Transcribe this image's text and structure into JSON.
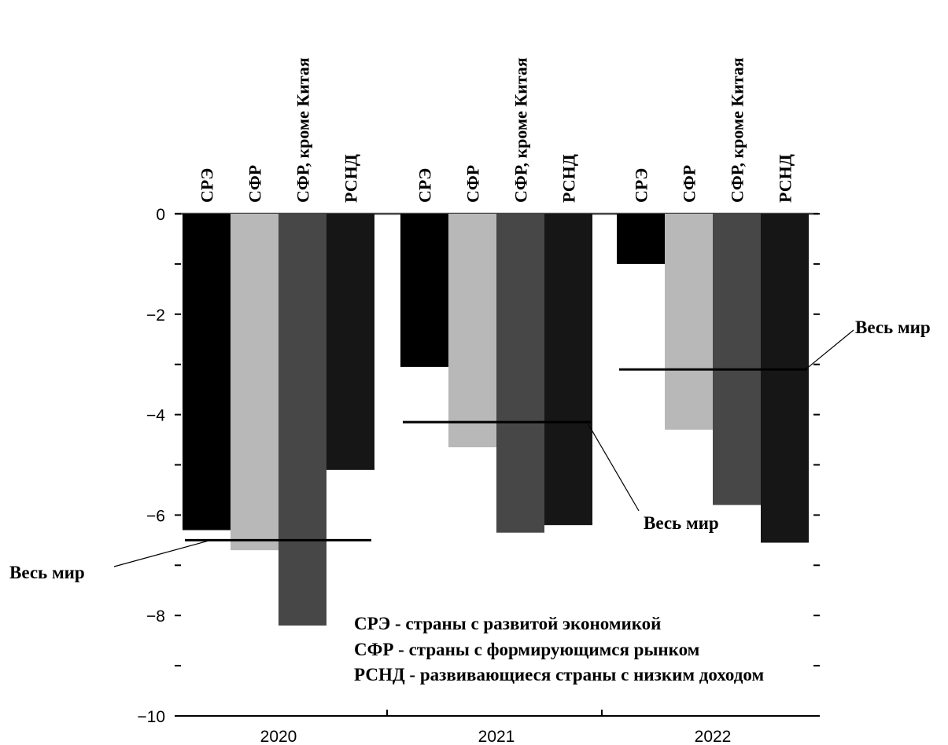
{
  "chart_data": {
    "type": "bar",
    "title": "",
    "xlabel": "",
    "ylabel": "",
    "ylim": [
      -10,
      0
    ],
    "yticks": [
      0,
      -2,
      -4,
      -6,
      -8,
      -10
    ],
    "grid": false,
    "categories": [
      "2020",
      "2021",
      "2022"
    ],
    "series": [
      {
        "name": "СРЭ",
        "color": "#000000",
        "values": [
          -6.3,
          -3.05,
          -1.0
        ]
      },
      {
        "name": "СФР",
        "color": "#b8b8b8",
        "values": [
          -6.7,
          -4.65,
          -4.3
        ]
      },
      {
        "name": "СФР, кроме Китая",
        "color": "#474747",
        "values": [
          -8.2,
          -6.35,
          -5.8
        ]
      },
      {
        "name": "РСНД",
        "color": "#161616",
        "values": [
          -5.1,
          -6.2,
          -6.55
        ]
      }
    ],
    "world": {
      "label": "Весь мир",
      "values": [
        -6.5,
        -4.15,
        -3.1
      ]
    },
    "legend": [
      "СРЭ - страны с развитой экономикой",
      "СФР - страны с формирующимся рынком",
      "РСНД - развивающиеся страны с низким доходом"
    ]
  }
}
